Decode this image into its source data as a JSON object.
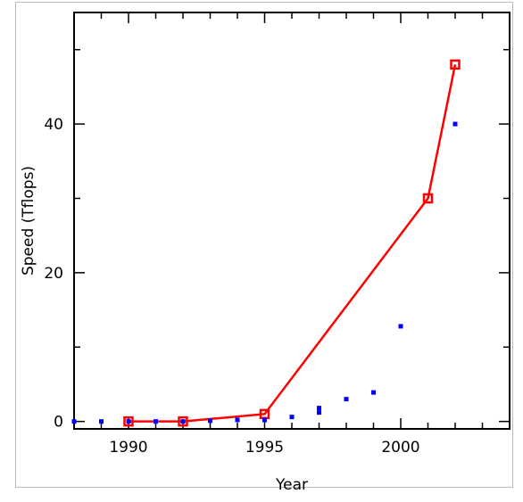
{
  "chart_data": {
    "type": "scatter",
    "title": "",
    "xlabel": "Year",
    "ylabel": "Speed (Tflops)",
    "xlim": [
      1988,
      2004
    ],
    "ylim": [
      -1,
      55
    ],
    "xticks": [
      1990,
      1995,
      2000
    ],
    "yticks": [
      0,
      20,
      40
    ],
    "grid": false,
    "legend": "none",
    "series": [
      {
        "kind": "line-markers",
        "color": "#ff0000",
        "marker": "square",
        "x": [
          1990,
          1992,
          1995,
          2001,
          2002
        ],
        "y": [
          0.0,
          0.0,
          1.0,
          30.0,
          48.0
        ]
      },
      {
        "kind": "points",
        "color": "#0000ff",
        "marker": "square",
        "x": [
          1988,
          1989,
          1990,
          1991,
          1992,
          1993,
          1994,
          1995,
          1996,
          1997,
          1997,
          1998,
          1999,
          2000,
          2002
        ],
        "y": [
          0.0,
          0.0,
          0.0,
          0.0,
          0.0,
          0.1,
          0.2,
          0.2,
          0.6,
          1.2,
          1.8,
          3.0,
          3.9,
          12.8,
          40.0
        ]
      }
    ]
  }
}
